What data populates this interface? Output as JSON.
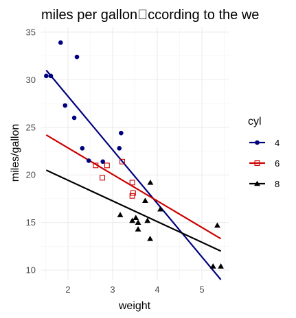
{
  "chart_data": {
    "type": "scatter",
    "title": "miles per gallon\u0000ccording to the we",
    "xlabel": "weight",
    "ylabel": "miles/gallon",
    "xlim": [
      1.4,
      5.6
    ],
    "ylim": [
      9,
      35.5
    ],
    "x_ticks": [
      2,
      3,
      4,
      5
    ],
    "y_ticks": [
      10,
      15,
      20,
      25,
      30,
      35
    ],
    "grid": true,
    "legend_title": "cyl",
    "legend_position": "right",
    "series": [
      {
        "name": "4",
        "color": "#00007f",
        "marker": "filled-circle",
        "x": [
          1.513,
          1.615,
          1.835,
          1.935,
          2.14,
          2.2,
          2.32,
          2.465,
          2.78,
          3.15,
          3.19
        ],
        "y": [
          30.4,
          30.4,
          33.9,
          27.3,
          26.0,
          32.4,
          22.8,
          21.5,
          21.4,
          22.8,
          24.4
        ],
        "fit": {
          "x": [
            1.513,
            5.424
          ],
          "y": [
            31.0,
            9.0
          ]
        }
      },
      {
        "name": "6",
        "color": "#cc0000",
        "marker": "open-square",
        "x": [
          2.62,
          2.77,
          2.875,
          3.215,
          3.44,
          3.44,
          3.46
        ],
        "y": [
          21.0,
          19.7,
          21.0,
          21.4,
          19.2,
          17.8,
          18.1
        ],
        "fit": {
          "x": [
            1.513,
            5.424
          ],
          "y": [
            24.2,
            13.3
          ]
        }
      },
      {
        "name": "8",
        "color": "#000000",
        "marker": "filled-triangle",
        "x": [
          3.17,
          3.44,
          3.52,
          3.57,
          3.57,
          3.73,
          3.78,
          3.84,
          3.845,
          4.07,
          5.25,
          5.345,
          5.424
        ],
        "y": [
          15.8,
          15.2,
          15.5,
          14.3,
          15.0,
          17.3,
          15.2,
          13.3,
          19.2,
          16.4,
          10.4,
          14.7,
          10.4
        ],
        "fit": {
          "x": [
            1.513,
            5.424
          ],
          "y": [
            20.5,
            12.0
          ]
        }
      }
    ]
  }
}
